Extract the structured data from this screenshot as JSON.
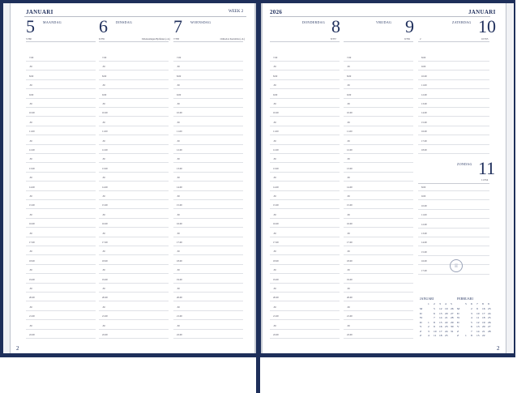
{
  "left": {
    "month": "JANUARI",
    "week": "WEEK 2",
    "page": "2",
    "days": [
      {
        "num": "5",
        "name": "MAANDAG",
        "info": "5/360",
        "note": ""
      },
      {
        "num": "6",
        "name": "DINSDAG",
        "info": "6/359",
        "note": "Driekoningen/Epifanie (o.h.)"
      },
      {
        "num": "7",
        "name": "WOENSDAG",
        "info": "7/358",
        "note": "Orthodox Kerstmis (o.h.)"
      }
    ]
  },
  "right": {
    "year": "2026",
    "month": "JANUARI",
    "page": "2",
    "days": [
      {
        "num": "8",
        "name": "DONDERDAG",
        "info": "8/357"
      },
      {
        "num": "9",
        "name": "VRIJDAG",
        "info": "9/356"
      },
      {
        "num": "10",
        "name": "ZATERDAG",
        "info": "10/355",
        "note": "2"
      },
      {
        "num": "11",
        "name": "ZONDAG",
        "info": "11/354"
      }
    ]
  },
  "times": [
    "7.00",
    ".30",
    "8.00",
    ".30",
    "9.00",
    ".30",
    "10.00",
    ".30",
    "11.00",
    ".30",
    "12.00",
    ".30",
    "13.00",
    ".30",
    "14.00",
    ".30",
    "15.00",
    ".30",
    "16.00",
    ".30",
    "17.00",
    ".30",
    "18.00",
    ".30",
    "19.00",
    ".30",
    "20.00",
    ".30",
    "21.00",
    ".30",
    "22.00"
  ],
  "weekend_sat_times": [
    "8.00",
    "9.00",
    "10.00",
    "11.00",
    "12.00",
    "13.00",
    "14.00",
    "15.00",
    "16.00",
    "17.00",
    "18.00"
  ],
  "weekend_sun_times": [
    "8.00",
    "9.00",
    "10.00",
    "11.00",
    "12.00",
    "13.00",
    "14.00",
    "15.00",
    "16.00",
    "17.00"
  ],
  "mini_calendars": [
    {
      "name": "JANUARI",
      "weeks": [
        "1",
        "2",
        "3",
        "4",
        "5"
      ],
      "rows": [
        [
          "M",
          "",
          "5",
          "12",
          "19",
          "26"
        ],
        [
          "D",
          "",
          "6",
          "13",
          "20",
          "27"
        ],
        [
          "W",
          "",
          "7",
          "14",
          "21",
          "28"
        ],
        [
          "D",
          "1",
          "8",
          "15",
          "22",
          "29"
        ],
        [
          "V",
          "2",
          "9",
          "16",
          "23",
          "30"
        ],
        [
          "Z",
          "3",
          "10",
          "17",
          "24",
          "31"
        ],
        [
          "Z",
          "4",
          "11",
          "18",
          "25",
          ""
        ]
      ]
    },
    {
      "name": "FEBRUARI",
      "weeks": [
        "5",
        "6",
        "7",
        "8",
        "9"
      ],
      "rows": [
        [
          "M",
          "",
          "2",
          "9",
          "16",
          "23"
        ],
        [
          "D",
          "",
          "3",
          "10",
          "17",
          "24"
        ],
        [
          "W",
          "",
          "4",
          "11",
          "18",
          "25"
        ],
        [
          "D",
          "",
          "5",
          "12",
          "19",
          "26"
        ],
        [
          "V",
          "",
          "6",
          "13",
          "20",
          "27"
        ],
        [
          "Z",
          "",
          "7",
          "14",
          "21",
          "28"
        ],
        [
          "Z",
          "1",
          "8",
          "15",
          "22",
          ""
        ]
      ]
    }
  ],
  "colors": {
    "cover": "#1e2f5a",
    "ink": "#1f2f5c"
  },
  "icons": {
    "logo": "planner-logo-icon"
  }
}
